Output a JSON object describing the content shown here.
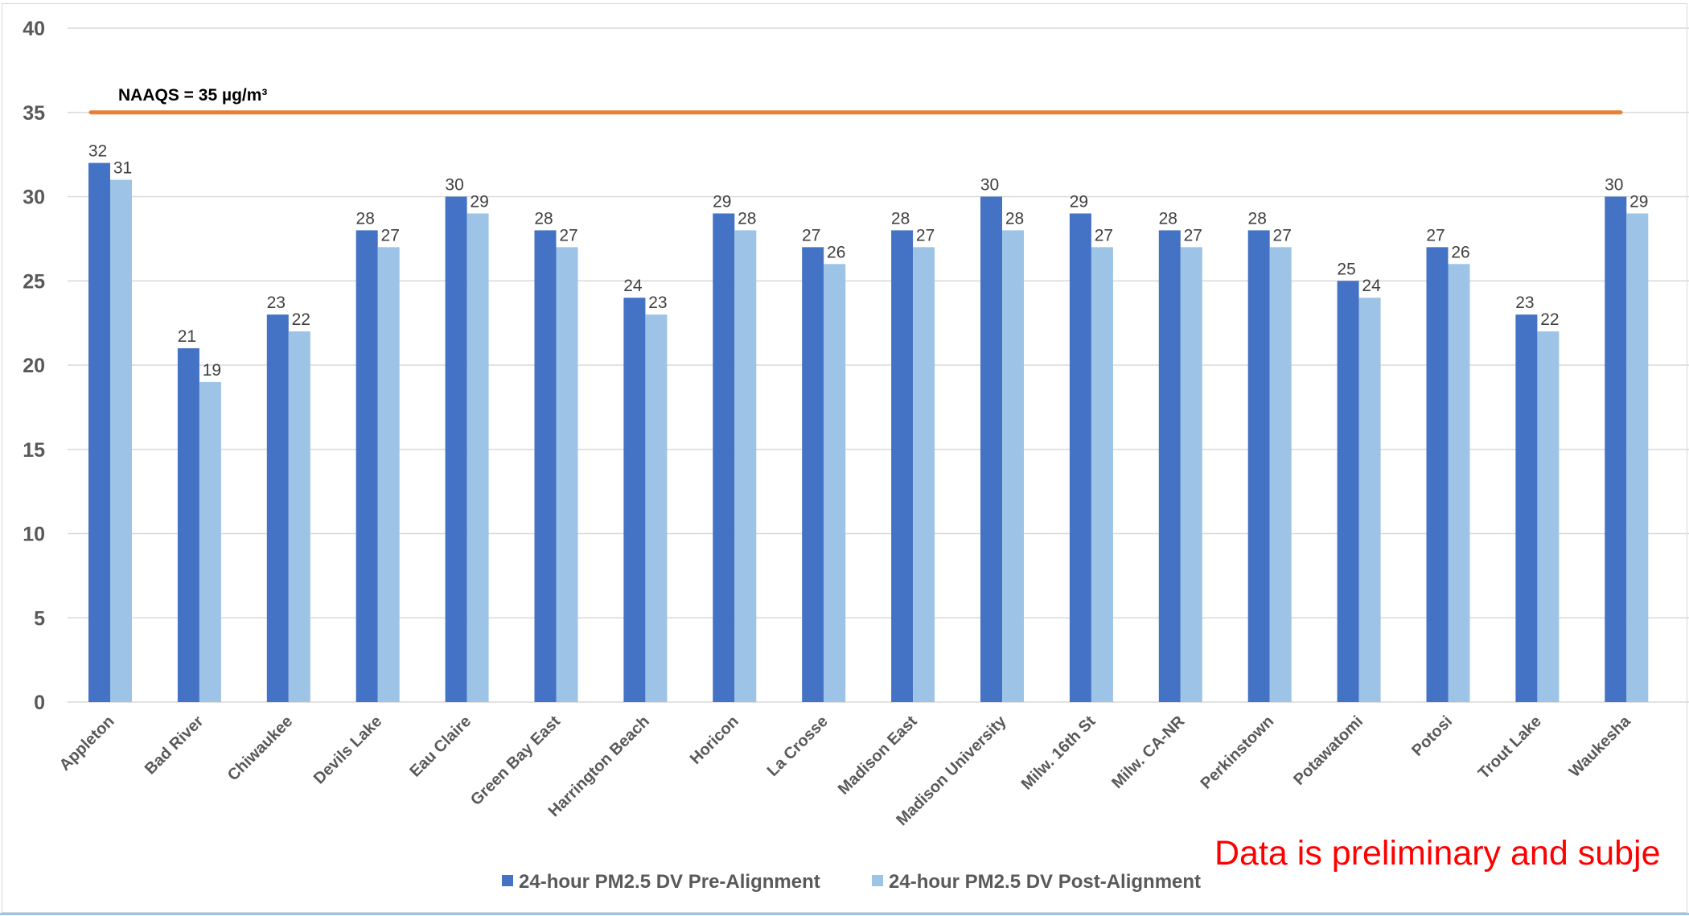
{
  "chart_data": {
    "type": "bar",
    "categories": [
      "Appleton",
      "Bad River",
      "Chiwaukee",
      "Devils Lake",
      "Eau Claire",
      "Green Bay East",
      "Harrington Beach",
      "Horicon",
      "La Crosse",
      "Madison East",
      "Madison University",
      "Milw. 16th St",
      "Milw. CA-NR",
      "Perkinstown",
      "Potawatomi",
      "Potosi",
      "Trout Lake",
      "Waukesha"
    ],
    "series": [
      {
        "name": "24-hour PM2.5 DV Pre-Alignment",
        "color": "#4472c4",
        "values": [
          32,
          21,
          23,
          28,
          30,
          28,
          24,
          29,
          27,
          28,
          30,
          29,
          28,
          28,
          25,
          27,
          23,
          30
        ]
      },
      {
        "name": "24-hour PM2.5 DV Post-Alignment",
        "color": "#9dc3e6",
        "values": [
          31,
          19,
          22,
          27,
          29,
          27,
          23,
          28,
          26,
          27,
          28,
          27,
          27,
          27,
          24,
          26,
          22,
          29
        ]
      }
    ],
    "ylim": [
      0,
      40
    ],
    "yticks": [
      0,
      5,
      10,
      15,
      20,
      25,
      30,
      35,
      40
    ],
    "grid": true,
    "legend_position": "bottom",
    "reference_line": {
      "value": 35,
      "label": "NAAQS = 35 µg/m³",
      "color": "#ed7d31"
    },
    "annotation": "Data is preliminary and subje"
  }
}
